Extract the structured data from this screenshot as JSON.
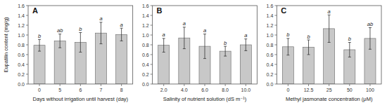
{
  "chart_data": [
    {
      "type": "bar",
      "title": "A",
      "categories": [
        "0",
        "5",
        "6",
        "7",
        "8"
      ],
      "values": [
        0.79,
        0.88,
        0.85,
        1.04,
        1.01
      ],
      "errors": [
        0.12,
        0.14,
        0.2,
        0.22,
        0.13
      ],
      "annotations": [
        "b",
        "ab",
        "b",
        "a",
        "a"
      ],
      "xlabel": "Days without irrigation until harvest (day)",
      "ylabel": "Eupatilin content (mg/g)",
      "color": "#c8c8c8",
      "ylim": [
        0,
        1.6
      ],
      "yticks": [
        {
          "value": 0,
          "label": "0.0"
        },
        0.2,
        0.4,
        0.6,
        0.8,
        {
          "value": 1,
          "label": "1.0"
        },
        1.2,
        1.4,
        1.6
      ]
    },
    {
      "type": "bar",
      "title": "B",
      "categories": [
        "2.0",
        "4.0",
        "6.0",
        "8.0",
        "10.0"
      ],
      "values": [
        0.79,
        0.94,
        0.77,
        0.67,
        0.8
      ],
      "errors": [
        0.14,
        0.22,
        0.25,
        0.1,
        0.12
      ],
      "annotations": [
        "a",
        "a",
        "a",
        "b",
        "a"
      ],
      "xlabel": "Salinity of nutrient solution (dS m⁻¹)",
      "color": "#c8c8c8",
      "ylim": [
        0,
        1.6
      ],
      "yticks": [
        {
          "value": 0,
          "label": "0.0"
        },
        0.2,
        0.4,
        0.6,
        0.8,
        {
          "value": 1,
          "label": "1.0"
        },
        1.2,
        1.4,
        1.6
      ]
    },
    {
      "type": "bar",
      "title": "C",
      "categories": [
        "0",
        "12.5",
        "25",
        "50",
        "100"
      ],
      "values": [
        0.76,
        0.75,
        1.13,
        0.7,
        0.93
      ],
      "errors": [
        0.17,
        0.15,
        0.28,
        0.15,
        0.22
      ],
      "annotations": [
        "b",
        "b",
        "a",
        "b",
        "ab"
      ],
      "xlabel": "Methyl jasmonate concentration (μM)",
      "color": "#c8c8c8",
      "ylim": [
        0,
        1.6
      ],
      "yticks": [
        {
          "value": 0,
          "label": "0.0"
        },
        0.2,
        0.4,
        0.6,
        0.8,
        {
          "value": 1,
          "label": "1.0"
        },
        1.2,
        1.4,
        1.6
      ]
    }
  ]
}
